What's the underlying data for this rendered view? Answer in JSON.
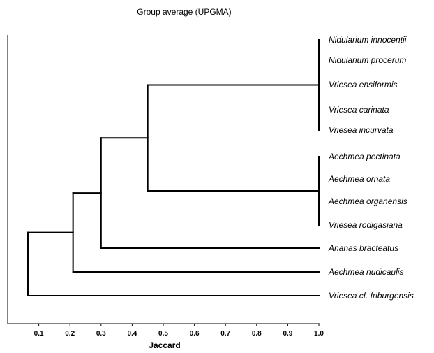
{
  "chart_data": {
    "type": "dendrogram",
    "title": "Group average (UPGMA)",
    "xlabel": "Jaccard",
    "x_ticks": [
      "0.1",
      "0.2",
      "0.3",
      "0.4",
      "0.5",
      "0.6",
      "0.7",
      "0.8",
      "0.9",
      "1.0"
    ],
    "xlim": [
      0.0,
      1.0
    ],
    "leaves": [
      "Nidularium innocentii",
      "Nidularium procerum",
      "Vriesea ensiformis",
      "Vriesea carinata",
      "Vriesea incurvata",
      "Aechmea pectinata",
      "Aechmea ornata",
      "Aechmea organensis",
      "Vriesea rodigasiana",
      "Ananas bracteatus",
      "Aechmea nudicaulis",
      "Vriesea cf. friburgensis"
    ],
    "merges": [
      {
        "id": "A",
        "children": [
          "Nidularium innocentii",
          "Nidularium procerum",
          "Vriesea ensiformis",
          "Vriesea carinata",
          "Vriesea incurvata"
        ],
        "similarity": 1.0
      },
      {
        "id": "B",
        "children": [
          "Aechmea pectinata",
          "Aechmea ornata",
          "Aechmea organensis",
          "Vriesea rodigasiana"
        ],
        "similarity": 1.0
      },
      {
        "id": "C",
        "children": [
          "A",
          "B"
        ],
        "similarity": 0.45
      },
      {
        "id": "D",
        "children": [
          "C",
          "Ananas bracteatus"
        ],
        "similarity": 0.3
      },
      {
        "id": "E",
        "children": [
          "D",
          "Aechmea nudicaulis"
        ],
        "similarity": 0.21
      },
      {
        "id": "F",
        "children": [
          "E",
          "Vriesea cf. friburgensis"
        ],
        "similarity": 0.065
      }
    ]
  }
}
